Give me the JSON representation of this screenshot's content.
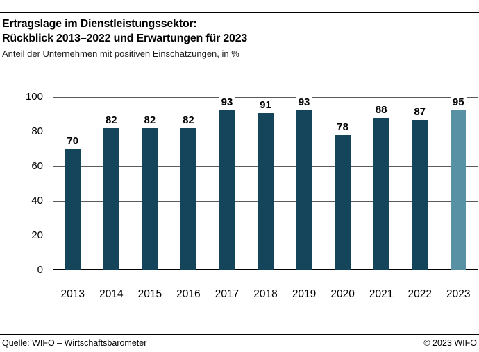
{
  "header": {
    "title_line1": "Ertragslage im Dienstleistungssektor:",
    "title_line2": "Rückblick 2013–2022 und Erwartungen für 2023",
    "subtitle": "Anteil der Unternehmen mit positiven Einschätzungen, in %"
  },
  "chart_data": {
    "type": "bar",
    "title": "Ertragslage im Dienstleistungssektor: Rückblick 2013–2022 und Erwartungen für 2023",
    "subtitle": "Anteil der Unternehmen mit positiven Einschätzungen, in %",
    "categories": [
      "2013",
      "2014",
      "2015",
      "2016",
      "2017",
      "2018",
      "2019",
      "2020",
      "2021",
      "2022",
      "2023"
    ],
    "values": [
      70,
      82,
      82,
      82,
      93,
      91,
      93,
      78,
      88,
      87,
      95
    ],
    "xlabel": "",
    "ylabel": "",
    "ylim": [
      0,
      100
    ],
    "yticks": [
      0,
      20,
      40,
      60,
      80,
      100
    ],
    "grid": true,
    "legend": false,
    "bar_color": "#15455a",
    "highlight_color": "#5890a4",
    "highlight_index": 10,
    "gridline_color": "#5a5a5a"
  },
  "footer": {
    "source": "Quelle: WIFO – Wirtschaftsbarometer",
    "copyright": "© 2023 WIFO"
  }
}
